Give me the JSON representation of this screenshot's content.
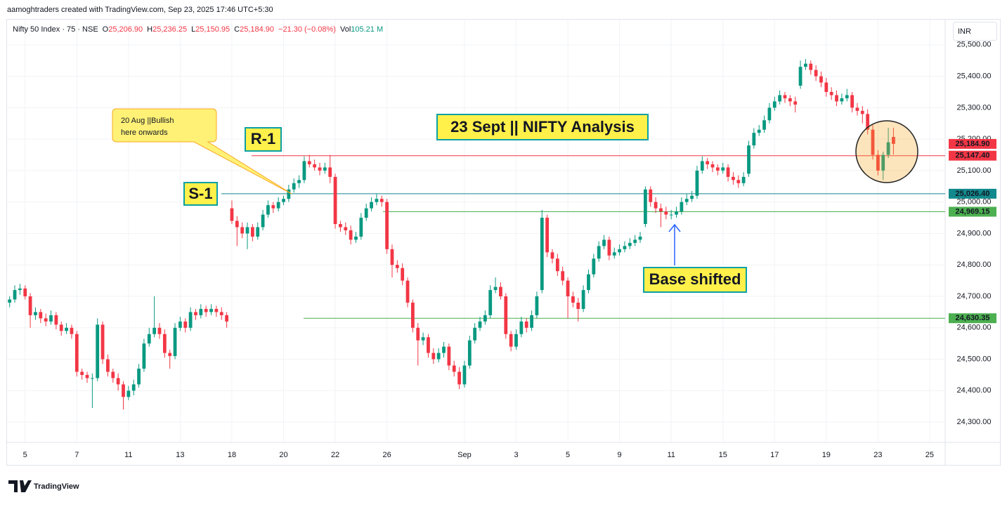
{
  "header": {
    "credit": "aamoghtraders created with TradingView.com, Sep 23, 2025 17:46 UTC+5:30"
  },
  "chart_data": {
    "type": "candlestick",
    "symbol": "Nifty 50 Index · 75 · NSE",
    "legend_values": [
      {
        "key": "O",
        "text": "25,206.90"
      },
      {
        "key": "H",
        "text": "25,236.25"
      },
      {
        "key": "L",
        "text": "25,150.95"
      },
      {
        "key": "C",
        "text": "25,184.90"
      }
    ],
    "change": "−21.30 (−0.08%)",
    "volume": {
      "key": "Vol",
      "text": "105.21 M"
    },
    "currency": "INR",
    "up_color": "#089981",
    "down_color": "#f23645",
    "grid": true,
    "xlim": [
      -0.5,
      181
    ],
    "ylim": [
      24164,
      25580
    ],
    "xticks": [
      {
        "value": 3,
        "label": "5"
      },
      {
        "value": 13,
        "label": "7"
      },
      {
        "value": 23,
        "label": "11"
      },
      {
        "value": 33,
        "label": "13"
      },
      {
        "value": 43,
        "label": "18"
      },
      {
        "value": 53,
        "label": "20"
      },
      {
        "value": 63,
        "label": "22"
      },
      {
        "value": 73,
        "label": "26"
      },
      {
        "value": 88,
        "label": "Sep"
      },
      {
        "value": 98,
        "label": "3"
      },
      {
        "value": 108,
        "label": "5"
      },
      {
        "value": 118,
        "label": "9"
      },
      {
        "value": 128,
        "label": "11"
      },
      {
        "value": 138,
        "label": "15"
      },
      {
        "value": 148,
        "label": "17"
      },
      {
        "value": 158,
        "label": "19"
      },
      {
        "value": 168,
        "label": "23"
      },
      {
        "value": 178,
        "label": "25"
      }
    ],
    "yticks": [
      {
        "value": 24300,
        "label": "24,300.00"
      },
      {
        "value": 24400,
        "label": "24,400.00"
      },
      {
        "value": 24500,
        "label": "24,500.00"
      },
      {
        "value": 24600,
        "label": "24,600.00"
      },
      {
        "value": 24700,
        "label": "24,700.00"
      },
      {
        "value": 24800,
        "label": "24,800.00"
      },
      {
        "value": 24900,
        "label": "24,900.00"
      },
      {
        "value": 25000,
        "label": "25,000.00"
      },
      {
        "value": 25100,
        "label": "25,100.00"
      },
      {
        "value": 25200,
        "label": "25,200.00"
      },
      {
        "value": 25300,
        "label": "25,300.00"
      },
      {
        "value": 25400,
        "label": "25,400.00"
      },
      {
        "value": 25500,
        "label": "25,500.00"
      }
    ],
    "levels": [
      {
        "value": 25147.4,
        "label": "25,147.40",
        "color": "#f23645"
      },
      {
        "value": 25026.4,
        "label": "25,026.40",
        "color": "#12898c"
      },
      {
        "value": 24969.15,
        "label": "24,969.15",
        "color": "#4caf50"
      },
      {
        "value": 24630.35,
        "label": "24,630.35",
        "color": "#4caf50"
      }
    ],
    "last_price": {
      "value": 25184.9,
      "label": "25,184.90",
      "color": "#f23645"
    },
    "annotations": {
      "callout": [
        "20 Aug ||Bullish",
        "here onwards"
      ],
      "resistance": "R-1",
      "support": "S-1",
      "title": "23 Sept || NIFTY Analysis",
      "note": "Base shifted"
    },
    "x": [
      0,
      1,
      2,
      3,
      4,
      5,
      6,
      7,
      8,
      9,
      10,
      11,
      12,
      13,
      14,
      15,
      16,
      17,
      18,
      19,
      20,
      21,
      22,
      23,
      24,
      25,
      26,
      27,
      28,
      29,
      30,
      31,
      32,
      33,
      34,
      35,
      36,
      37,
      38,
      39,
      40,
      41,
      42,
      43,
      44,
      45,
      46,
      47,
      48,
      49,
      50,
      51,
      52,
      53,
      54,
      55,
      56,
      57,
      58,
      59,
      60,
      61,
      62,
      63,
      64,
      65,
      66,
      67,
      68,
      69,
      70,
      71,
      72,
      73,
      74,
      75,
      76,
      77,
      78,
      79,
      80,
      81,
      82,
      83,
      84,
      85,
      86,
      87,
      88,
      89,
      90,
      91,
      92,
      93,
      94,
      95,
      96,
      97,
      98,
      99,
      100,
      101,
      102,
      103,
      104,
      105,
      106,
      107,
      108,
      109,
      110,
      111,
      112,
      113,
      114,
      115,
      116,
      117,
      118,
      119,
      120,
      121,
      122,
      123,
      124,
      125,
      126,
      127,
      128,
      129,
      130,
      131,
      132,
      133,
      134,
      135,
      136,
      137,
      138,
      139,
      140,
      141,
      142,
      143,
      144,
      145,
      146,
      147,
      148,
      149,
      150,
      151,
      152,
      153,
      154,
      155,
      156,
      157,
      158,
      159,
      160,
      161,
      162,
      163,
      164,
      165,
      166,
      167,
      168,
      169,
      170,
      171
    ],
    "ohlc": [
      [
        24680,
        24700,
        24665,
        24690
      ],
      [
        24690,
        24735,
        24680,
        24720
      ],
      [
        24720,
        24740,
        24705,
        24725
      ],
      [
        24725,
        24735,
        24690,
        24700
      ],
      [
        24700,
        24710,
        24600,
        24640
      ],
      [
        24640,
        24665,
        24625,
        24650
      ],
      [
        24650,
        24660,
        24615,
        24630
      ],
      [
        24630,
        24645,
        24605,
        24620
      ],
      [
        24620,
        24655,
        24610,
        24640
      ],
      [
        24640,
        24650,
        24595,
        24610
      ],
      [
        24610,
        24620,
        24575,
        24590
      ],
      [
        24590,
        24615,
        24580,
        24600
      ],
      [
        24600,
        24610,
        24565,
        24580
      ],
      [
        24580,
        24590,
        24445,
        24460
      ],
      [
        24460,
        24470,
        24435,
        24450
      ],
      [
        24450,
        24460,
        24425,
        24440
      ],
      [
        24440,
        24455,
        24345,
        24440
      ],
      [
        24440,
        24630,
        24430,
        24610
      ],
      [
        24610,
        24620,
        24485,
        24500
      ],
      [
        24500,
        24515,
        24445,
        24460
      ],
      [
        24460,
        24470,
        24425,
        24440
      ],
      [
        24440,
        24455,
        24400,
        24420
      ],
      [
        24420,
        24430,
        24340,
        24380
      ],
      [
        24380,
        24415,
        24370,
        24400
      ],
      [
        24400,
        24435,
        24385,
        24420
      ],
      [
        24420,
        24485,
        24410,
        24470
      ],
      [
        24470,
        24565,
        24460,
        24550
      ],
      [
        24550,
        24600,
        24540,
        24580
      ],
      [
        24580,
        24700,
        24570,
        24600
      ],
      [
        24600,
        24615,
        24565,
        24580
      ],
      [
        24580,
        24595,
        24505,
        24520
      ],
      [
        24520,
        24530,
        24470,
        24510
      ],
      [
        24510,
        24615,
        24500,
        24600
      ],
      [
        24600,
        24635,
        24590,
        24620
      ],
      [
        24620,
        24630,
        24585,
        24600
      ],
      [
        24600,
        24665,
        24590,
        24650
      ],
      [
        24650,
        24660,
        24625,
        24640
      ],
      [
        24640,
        24675,
        24630,
        24660
      ],
      [
        24660,
        24670,
        24635,
        24650
      ],
      [
        24650,
        24675,
        24640,
        24660
      ],
      [
        24660,
        24670,
        24635,
        24650
      ],
      [
        24650,
        24665,
        24625,
        24640
      ],
      [
        24640,
        24650,
        24600,
        24620
      ],
      [
        24980,
        25005,
        24930,
        24940
      ],
      [
        24940,
        24955,
        24860,
        24920
      ],
      [
        24920,
        24935,
        24885,
        24900
      ],
      [
        24900,
        24935,
        24850,
        24920
      ],
      [
        24920,
        24930,
        24875,
        24890
      ],
      [
        24890,
        24935,
        24880,
        24920
      ],
      [
        24920,
        24975,
        24910,
        24960
      ],
      [
        24960,
        25005,
        24950,
        24990
      ],
      [
        24990,
        25000,
        24965,
        24980
      ],
      [
        24980,
        25015,
        24970,
        25000
      ],
      [
        25000,
        25020,
        24990,
        25010
      ],
      [
        25010,
        25055,
        25000,
        25040
      ],
      [
        25040,
        25075,
        25030,
        25060
      ],
      [
        25060,
        25085,
        25045,
        25070
      ],
      [
        25070,
        25145,
        25060,
        25130
      ],
      [
        25130,
        25150,
        25110,
        25120
      ],
      [
        25120,
        25135,
        25100,
        25110
      ],
      [
        25110,
        25125,
        25085,
        25100
      ],
      [
        25100,
        25125,
        25090,
        25110
      ],
      [
        25110,
        25150,
        25060,
        25080
      ],
      [
        25080,
        25090,
        24915,
        24930
      ],
      [
        24930,
        24940,
        24905,
        24920
      ],
      [
        24920,
        24935,
        24895,
        24910
      ],
      [
        24910,
        24925,
        24865,
        24880
      ],
      [
        24880,
        24905,
        24870,
        24890
      ],
      [
        24890,
        24965,
        24880,
        24950
      ],
      [
        24950,
        24995,
        24940,
        24980
      ],
      [
        24980,
        25015,
        24970,
        25000
      ],
      [
        25000,
        25025,
        24990,
        25010
      ],
      [
        25010,
        25020,
        24985,
        25000
      ],
      [
        25000,
        25010,
        24835,
        24850
      ],
      [
        24850,
        24865,
        24760,
        24800
      ],
      [
        24800,
        24815,
        24775,
        24790
      ],
      [
        24790,
        24805,
        24735,
        24750
      ],
      [
        24750,
        24760,
        24665,
        24680
      ],
      [
        24680,
        24690,
        24585,
        24600
      ],
      [
        24600,
        24615,
        24480,
        24560
      ],
      [
        24560,
        24585,
        24545,
        24570
      ],
      [
        24570,
        24580,
        24505,
        24520
      ],
      [
        24520,
        24535,
        24485,
        24500
      ],
      [
        24500,
        24535,
        24490,
        24520
      ],
      [
        24520,
        24555,
        24505,
        24540
      ],
      [
        24540,
        24550,
        24465,
        24480
      ],
      [
        24480,
        24495,
        24445,
        24460
      ],
      [
        24460,
        24475,
        24405,
        24420
      ],
      [
        24420,
        24495,
        24410,
        24480
      ],
      [
        24480,
        24575,
        24470,
        24560
      ],
      [
        24560,
        24615,
        24550,
        24600
      ],
      [
        24600,
        24635,
        24590,
        24620
      ],
      [
        24620,
        24655,
        24610,
        24640
      ],
      [
        24640,
        24735,
        24630,
        24720
      ],
      [
        24720,
        24760,
        24710,
        24730
      ],
      [
        24730,
        24745,
        24690,
        24700
      ],
      [
        24700,
        24710,
        24565,
        24580
      ],
      [
        24580,
        24590,
        24525,
        24540
      ],
      [
        24540,
        24595,
        24530,
        24580
      ],
      [
        24580,
        24635,
        24570,
        24620
      ],
      [
        24620,
        24630,
        24585,
        24600
      ],
      [
        24600,
        24655,
        24590,
        24640
      ],
      [
        24640,
        24715,
        24630,
        24700
      ],
      [
        24720,
        24975,
        24710,
        24950
      ],
      [
        24950,
        24960,
        24825,
        24840
      ],
      [
        24840,
        24850,
        24805,
        24820
      ],
      [
        24820,
        24835,
        24765,
        24780
      ],
      [
        24780,
        24795,
        24735,
        24750
      ],
      [
        24750,
        24760,
        24630,
        24700
      ],
      [
        24700,
        24715,
        24665,
        24680
      ],
      [
        24680,
        24695,
        24620,
        24660
      ],
      [
        24660,
        24735,
        24650,
        24720
      ],
      [
        24720,
        24785,
        24710,
        24770
      ],
      [
        24770,
        24835,
        24760,
        24820
      ],
      [
        24820,
        24875,
        24810,
        24860
      ],
      [
        24860,
        24895,
        24850,
        24880
      ],
      [
        24880,
        24890,
        24815,
        24830
      ],
      [
        24830,
        24855,
        24820,
        24840
      ],
      [
        24840,
        24865,
        24830,
        24850
      ],
      [
        24850,
        24875,
        24840,
        24860
      ],
      [
        24860,
        24885,
        24850,
        24870
      ],
      [
        24870,
        24895,
        24860,
        24880
      ],
      [
        24880,
        24905,
        24870,
        24890
      ],
      [
        24930,
        25050,
        24920,
        25040
      ],
      [
        25040,
        25050,
        24985,
        25000
      ],
      [
        25000,
        25015,
        24965,
        24980
      ],
      [
        24980,
        24995,
        24920,
        24970
      ],
      [
        24970,
        24985,
        24945,
        24960
      ],
      [
        24960,
        24975,
        24945,
        24960
      ],
      [
        24960,
        24985,
        24950,
        24970
      ],
      [
        24970,
        25015,
        24960,
        25000
      ],
      [
        25000,
        25025,
        24990,
        25010
      ],
      [
        25010,
        25035,
        25000,
        25020
      ],
      [
        25020,
        25115,
        25010,
        25100
      ],
      [
        25100,
        25145,
        25090,
        25130
      ],
      [
        25130,
        25140,
        25105,
        25120
      ],
      [
        25120,
        25130,
        25095,
        25110
      ],
      [
        25110,
        25120,
        25085,
        25100
      ],
      [
        25100,
        25125,
        25090,
        25110
      ],
      [
        25110,
        25120,
        25065,
        25080
      ],
      [
        25080,
        25095,
        25055,
        25070
      ],
      [
        25070,
        25085,
        25045,
        25060
      ],
      [
        25060,
        25095,
        25050,
        25080
      ],
      [
        25090,
        25195,
        25080,
        25180
      ],
      [
        25180,
        25235,
        25170,
        25220
      ],
      [
        25220,
        25245,
        25210,
        25230
      ],
      [
        25230,
        25275,
        25220,
        25260
      ],
      [
        25260,
        25315,
        25250,
        25300
      ],
      [
        25300,
        25335,
        25290,
        25320
      ],
      [
        25320,
        25355,
        25310,
        25340
      ],
      [
        25340,
        25350,
        25315,
        25330
      ],
      [
        25330,
        25340,
        25305,
        25320
      ],
      [
        25320,
        25335,
        25285,
        25310
      ],
      [
        25370,
        25450,
        25360,
        25430
      ],
      [
        25430,
        25455,
        25420,
        25440
      ],
      [
        25440,
        25450,
        25405,
        25420
      ],
      [
        25420,
        25435,
        25385,
        25400
      ],
      [
        25400,
        25415,
        25365,
        25380
      ],
      [
        25380,
        25395,
        25335,
        25350
      ],
      [
        25350,
        25365,
        25325,
        25340
      ],
      [
        25340,
        25355,
        25305,
        25320
      ],
      [
        25320,
        25345,
        25310,
        25330
      ],
      [
        25330,
        25360,
        25320,
        25340
      ],
      [
        25340,
        25350,
        25285,
        25300
      ],
      [
        25300,
        25315,
        25275,
        25290
      ],
      [
        25290,
        25305,
        25250,
        25280
      ],
      [
        25280,
        25295,
        25215,
        25230
      ],
      [
        25230,
        25245,
        25135,
        25150
      ],
      [
        25150,
        25165,
        25085,
        25100
      ],
      [
        25100,
        25160,
        25070,
        25150
      ],
      [
        25150,
        25236,
        25140,
        25190
      ],
      [
        25206.9,
        25236.25,
        25150.95,
        25184.9
      ]
    ]
  },
  "footer": {
    "brand": "TradingView"
  }
}
